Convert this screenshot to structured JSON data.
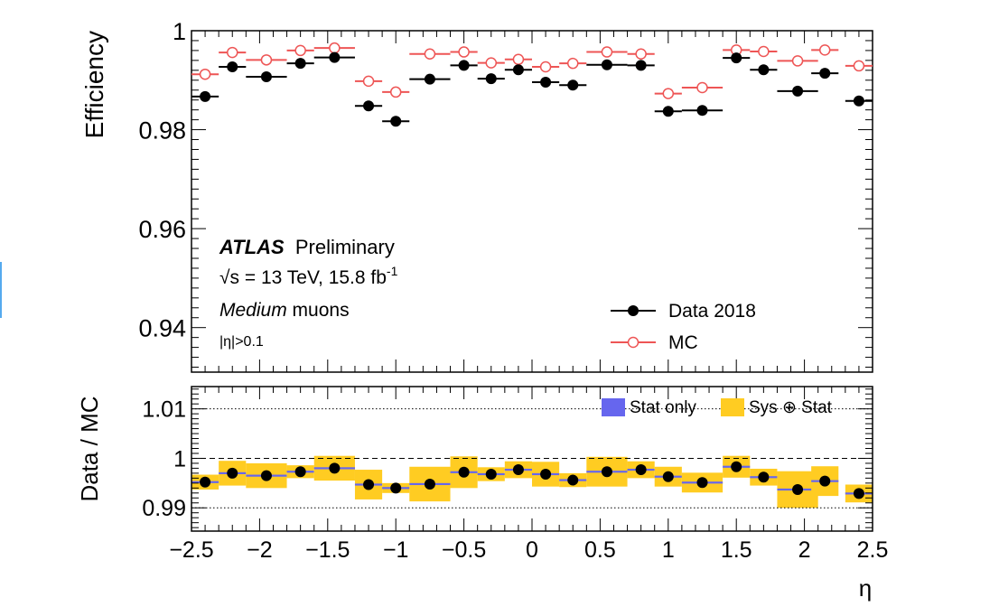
{
  "chart_data": [
    {
      "type": "scatter",
      "panel": "upper",
      "ylabel": "Efficiency",
      "ylim": [
        0.931,
        1.0
      ],
      "xlim": [
        -2.5,
        2.5
      ],
      "yticks": [
        0.94,
        0.96,
        0.98,
        1
      ],
      "ytick_labels": [
        "0.94",
        "0.96",
        "0.98",
        "1"
      ],
      "x": [
        -2.4,
        -2.2,
        -1.95,
        -1.7,
        -1.45,
        -1.2,
        -1.0,
        -0.75,
        -0.5,
        -0.3,
        -0.1,
        0.1,
        0.3,
        0.55,
        0.8,
        1.0,
        1.25,
        1.5,
        1.7,
        1.95,
        2.15,
        2.4
      ],
      "x_halfwidth": [
        0.1,
        0.1,
        0.15,
        0.1,
        0.15,
        0.1,
        0.1,
        0.15,
        0.1,
        0.1,
        0.1,
        0.1,
        0.1,
        0.15,
        0.1,
        0.1,
        0.15,
        0.1,
        0.1,
        0.15,
        0.1,
        0.1
      ],
      "series": [
        {
          "name": "Data 2018",
          "marker": "filled-circle",
          "color": "#000000",
          "values": [
            0.9867,
            0.9927,
            0.9907,
            0.9934,
            0.9946,
            0.9848,
            0.9817,
            0.9902,
            0.993,
            0.9903,
            0.9921,
            0.9896,
            0.989,
            0.9931,
            0.993,
            0.9837,
            0.9839,
            0.9945,
            0.9921,
            0.9878,
            0.9914,
            0.9858
          ]
        },
        {
          "name": "MC",
          "marker": "open-circle",
          "color": "#ee5555",
          "values": [
            0.9912,
            0.9956,
            0.9941,
            0.996,
            0.9965,
            0.9898,
            0.9876,
            0.9953,
            0.9957,
            0.9935,
            0.9942,
            0.9927,
            0.9934,
            0.9957,
            0.9953,
            0.9873,
            0.9885,
            0.9961,
            0.9958,
            0.9939,
            0.9961,
            0.9929
          ]
        }
      ],
      "annotations": {
        "experiment": "ATLAS",
        "status": "Preliminary",
        "energy": "√s = 13 TeV, 15.8 fb",
        "lumi_exp": "-1",
        "sel_italic": "Medium",
        "sel_rest": " muons",
        "cut": "|η|>0.1"
      },
      "legend": {
        "placement": "bottom-right",
        "entries": [
          "Data 2018",
          "MC"
        ]
      }
    },
    {
      "type": "scatter",
      "panel": "lower",
      "ylabel": "Data / MC",
      "xlabel": "η",
      "ylim": [
        0.9853,
        1.0145
      ],
      "xlim": [
        -2.5,
        2.5
      ],
      "yticks": [
        0.99,
        1,
        1.01
      ],
      "ytick_labels": [
        "0.99",
        "1",
        "1.01"
      ],
      "xticks": [
        -2.5,
        -2,
        -1.5,
        -1,
        -0.5,
        0,
        0.5,
        1,
        1.5,
        2,
        2.5
      ],
      "xtick_labels": [
        "−2.5",
        "−2",
        "−1.5",
        "−1",
        "−0.5",
        "0",
        "0.5",
        "1",
        "1.5",
        "2",
        "2.5"
      ],
      "x": [
        -2.4,
        -2.2,
        -1.95,
        -1.7,
        -1.45,
        -1.2,
        -1.0,
        -0.75,
        -0.5,
        -0.3,
        -0.1,
        0.1,
        0.3,
        0.55,
        0.8,
        1.0,
        1.25,
        1.5,
        1.7,
        1.95,
        2.15,
        2.4
      ],
      "x_halfwidth": [
        0.1,
        0.1,
        0.15,
        0.1,
        0.15,
        0.1,
        0.1,
        0.15,
        0.1,
        0.1,
        0.1,
        0.1,
        0.1,
        0.15,
        0.1,
        0.1,
        0.15,
        0.1,
        0.1,
        0.15,
        0.1,
        0.1
      ],
      "ratio": [
        0.9952,
        0.997,
        0.9965,
        0.9973,
        0.998,
        0.9947,
        0.994,
        0.9948,
        0.9972,
        0.9968,
        0.9977,
        0.9968,
        0.9956,
        0.9973,
        0.9977,
        0.9963,
        0.9951,
        0.9983,
        0.9962,
        0.9937,
        0.9954,
        0.9929
      ],
      "syst_halfheight": [
        0.0015,
        0.0025,
        0.0025,
        0.0013,
        0.0025,
        0.003,
        0.001,
        0.0035,
        0.0032,
        0.0014,
        0.0017,
        0.0025,
        0.0014,
        0.003,
        0.0017,
        0.002,
        0.002,
        0.0022,
        0.0017,
        0.0037,
        0.003,
        0.0018
      ],
      "stat_halfheight": [
        0.0002,
        0.0002,
        0.0002,
        0.0002,
        0.0002,
        0.0002,
        0.0002,
        0.0002,
        0.0002,
        0.0002,
        0.0002,
        0.0002,
        0.0002,
        0.0002,
        0.0002,
        0.0002,
        0.0002,
        0.0002,
        0.0002,
        0.0002,
        0.0002,
        0.0002
      ],
      "bands": [
        {
          "name": "Stat only",
          "color": "#6666ee"
        },
        {
          "name": "Sys ⊕ Stat",
          "color": "#ffcc22"
        }
      ],
      "legend": {
        "placement": "top-right",
        "entries": [
          "Stat only",
          "Sys ⊕ Stat"
        ]
      }
    }
  ]
}
